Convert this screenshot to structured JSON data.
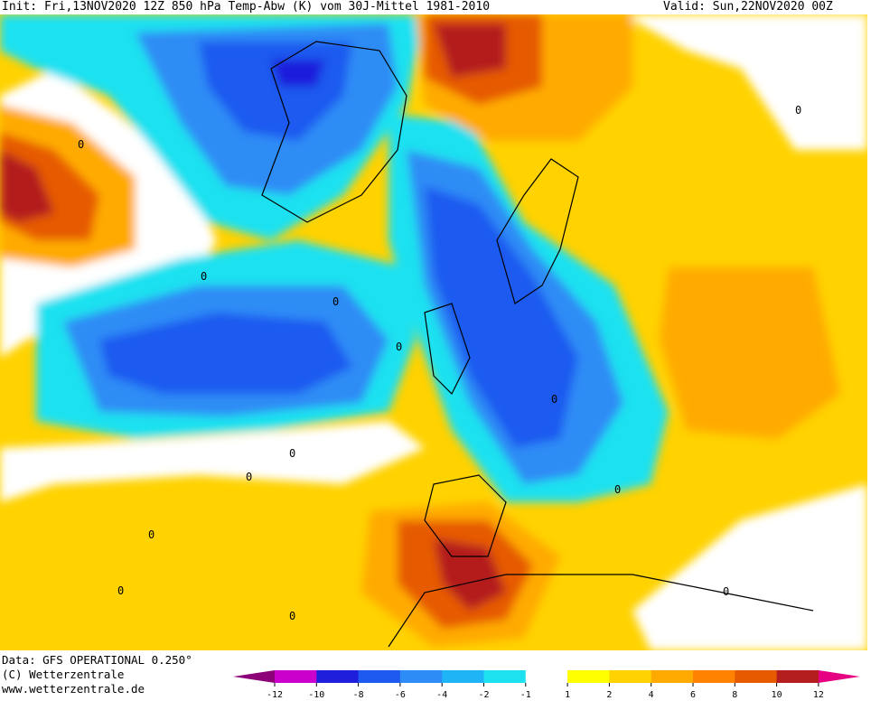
{
  "header": {
    "left_text": "Init: Fri,13NOV2020 12Z 850 hPa Temp-Abw (K) vom 30J-Mittel 1981-2010",
    "right_text": "Valid: Sun,22NOV2020 00Z"
  },
  "footer": {
    "data_line": "Data: GFS OPERATIONAL 0.250°",
    "copyright_line": "(C) Wetterzentrale",
    "url_line": "www.wetterzentrale.de"
  },
  "contour_labels": [
    "0",
    "0",
    "0",
    "0",
    "0",
    "0",
    "0",
    "0",
    "0",
    "0",
    "0",
    "0",
    "0"
  ],
  "legend": {
    "bands": [
      {
        "color": "#cc00cc"
      },
      {
        "color": "#1e1edc"
      },
      {
        "color": "#1e5af0"
      },
      {
        "color": "#2d8cf5"
      },
      {
        "color": "#1eb4f5"
      },
      {
        "color": "#1ee1f0"
      },
      {
        "color": "#ffffff"
      },
      {
        "color": "#ffff00"
      },
      {
        "color": "#ffd200"
      },
      {
        "color": "#ffaa00"
      },
      {
        "color": "#ff8200"
      },
      {
        "color": "#e65a00"
      },
      {
        "color": "#b41e1e"
      }
    ],
    "low_arrow_color": "#8c0078",
    "high_arrow_color": "#e60082",
    "ticks": [
      "-12",
      "-10",
      "-8",
      "-6",
      "-4",
      "-2",
      "-1",
      "1",
      "2",
      "4",
      "6",
      "8",
      "10",
      "12"
    ]
  }
}
